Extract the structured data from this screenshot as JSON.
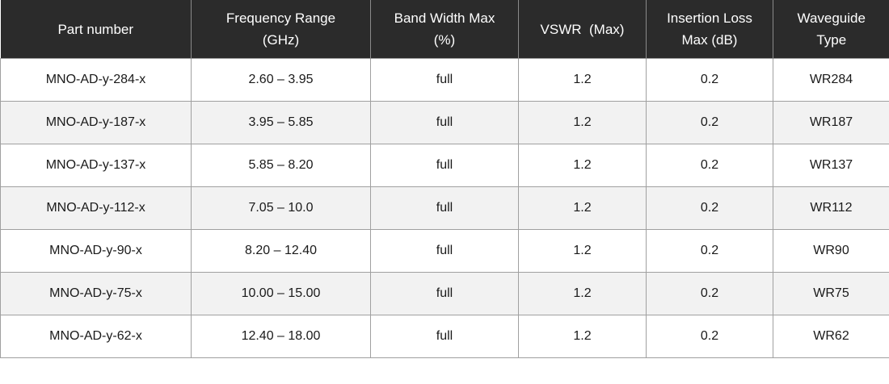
{
  "table": {
    "header": [
      [
        "Part number"
      ],
      [
        "Frequency Range",
        "(GHz)"
      ],
      [
        "Band Width Max",
        "(%)"
      ],
      [
        "VSWR  (Max)"
      ],
      [
        "Insertion Loss",
        "Max (dB)"
      ],
      [
        "Waveguide",
        "Type"
      ]
    ],
    "rows": [
      [
        "MNO-AD-y-284-x",
        "2.60 – 3.95",
        "full",
        "1.2",
        "0.2",
        "WR284"
      ],
      [
        "MNO-AD-y-187-x",
        "3.95 – 5.85",
        "full",
        "1.2",
        "0.2",
        "WR187"
      ],
      [
        "MNO-AD-y-137-x",
        "5.85 – 8.20",
        "full",
        "1.2",
        "0.2",
        "WR137"
      ],
      [
        "MNO-AD-y-112-x",
        "7.05 – 10.0",
        "full",
        "1.2",
        "0.2",
        "WR112"
      ],
      [
        "MNO-AD-y-90-x",
        "8.20 – 12.40",
        "full",
        "1.2",
        "0.2",
        "WR90"
      ],
      [
        "MNO-AD-y-75-x",
        "10.00 – 15.00",
        "full",
        "1.2",
        "0.2",
        "WR75"
      ],
      [
        "MNO-AD-y-62-x",
        "12.40 – 18.00",
        "full",
        "1.2",
        "0.2",
        "WR62"
      ]
    ]
  }
}
